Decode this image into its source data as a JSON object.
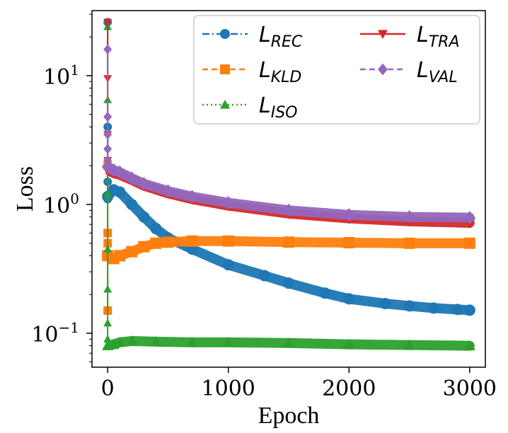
{
  "chart_data": {
    "type": "line",
    "title": "",
    "xlabel": "Epoch",
    "ylabel": "Loss",
    "yscale": "log",
    "xlim": [
      -130,
      3130
    ],
    "ylim": [
      0.0545,
      32
    ],
    "x_ticks": [
      {
        "value": 0,
        "label": "0"
      },
      {
        "value": 1000,
        "label": "1000"
      },
      {
        "value": 2000,
        "label": "2000"
      },
      {
        "value": 3000,
        "label": "3000"
      }
    ],
    "y_ticks": [
      {
        "value": 0.1,
        "base": "10",
        "exp": "−1"
      },
      {
        "value": 1,
        "base": "10",
        "exp": "0"
      },
      {
        "value": 10,
        "base": "10",
        "exp": "1"
      }
    ],
    "legend_position": "top-right",
    "series": [
      {
        "name": "L_REC",
        "label_main": "L",
        "label_sub": "REC",
        "color": "#1f77b4",
        "marker": "circle",
        "linestyle": "dashdot",
        "points": [
          [
            0,
            1.15
          ],
          [
            50,
            1.3
          ],
          [
            100,
            1.25
          ],
          [
            200,
            1.0
          ],
          [
            300,
            0.8
          ],
          [
            400,
            0.65
          ],
          [
            500,
            0.55
          ],
          [
            700,
            0.45
          ],
          [
            1000,
            0.34
          ],
          [
            1300,
            0.28
          ],
          [
            1500,
            0.245
          ],
          [
            1800,
            0.205
          ],
          [
            2000,
            0.185
          ],
          [
            2300,
            0.17
          ],
          [
            2500,
            0.163
          ],
          [
            2700,
            0.157
          ],
          [
            2900,
            0.153
          ],
          [
            3000,
            0.151
          ]
        ]
      },
      {
        "name": "L_KLD",
        "label_main": "L",
        "label_sub": "KLD",
        "color": "#ff7f0e",
        "marker": "square",
        "linestyle": "dashed",
        "points": [
          [
            0,
            0.4
          ],
          [
            50,
            0.38
          ],
          [
            100,
            0.4
          ],
          [
            200,
            0.43
          ],
          [
            300,
            0.47
          ],
          [
            400,
            0.5
          ],
          [
            500,
            0.51
          ],
          [
            700,
            0.52
          ],
          [
            1000,
            0.52
          ],
          [
            1500,
            0.51
          ],
          [
            2000,
            0.505
          ],
          [
            2500,
            0.5
          ],
          [
            3000,
            0.5
          ]
        ]
      },
      {
        "name": "L_ISO",
        "label_main": "L",
        "label_sub": "ISO",
        "color": "#2ca02c",
        "marker": "triangle-up",
        "linestyle": "dotted",
        "points": [
          [
            0,
            0.08
          ],
          [
            50,
            0.082
          ],
          [
            100,
            0.085
          ],
          [
            200,
            0.087
          ],
          [
            400,
            0.086
          ],
          [
            700,
            0.085
          ],
          [
            1000,
            0.085
          ],
          [
            1500,
            0.084
          ],
          [
            2000,
            0.082
          ],
          [
            2500,
            0.081
          ],
          [
            3000,
            0.08
          ]
        ]
      },
      {
        "name": "L_TRA",
        "label_main": "L",
        "label_sub": "TRA",
        "color": "#d62728",
        "marker": "triangle-down",
        "linestyle": "solid",
        "points": [
          [
            0,
            1.85
          ],
          [
            50,
            1.75
          ],
          [
            100,
            1.7
          ],
          [
            200,
            1.55
          ],
          [
            300,
            1.4
          ],
          [
            500,
            1.22
          ],
          [
            700,
            1.1
          ],
          [
            1000,
            0.98
          ],
          [
            1500,
            0.85
          ],
          [
            2000,
            0.78
          ],
          [
            2500,
            0.74
          ],
          [
            3000,
            0.72
          ]
        ]
      },
      {
        "name": "L_VAL",
        "label_main": "L",
        "label_sub": "VAL",
        "color": "#9467bd",
        "marker": "diamond",
        "linestyle": "dashed",
        "points": [
          [
            0,
            1.95
          ],
          [
            50,
            1.85
          ],
          [
            100,
            1.78
          ],
          [
            200,
            1.6
          ],
          [
            300,
            1.45
          ],
          [
            500,
            1.27
          ],
          [
            700,
            1.15
          ],
          [
            1000,
            1.03
          ],
          [
            1500,
            0.9
          ],
          [
            2000,
            0.83
          ],
          [
            2500,
            0.8
          ],
          [
            3000,
            0.79
          ]
        ]
      }
    ],
    "initial_spikes": {
      "L_REC": [
        26,
        4,
        1.5,
        1.1
      ],
      "L_KLD": [
        0.15,
        2.0,
        0.5,
        0.6,
        0.4
      ],
      "L_ISO": [
        24,
        6.5,
        1.2,
        0.45,
        0.22,
        0.12,
        0.09
      ],
      "L_TRA": [
        26,
        9.5,
        3.5,
        2.2
      ],
      "L_VAL": [
        16,
        4.8,
        3.5,
        2.7,
        2.2
      ]
    }
  }
}
